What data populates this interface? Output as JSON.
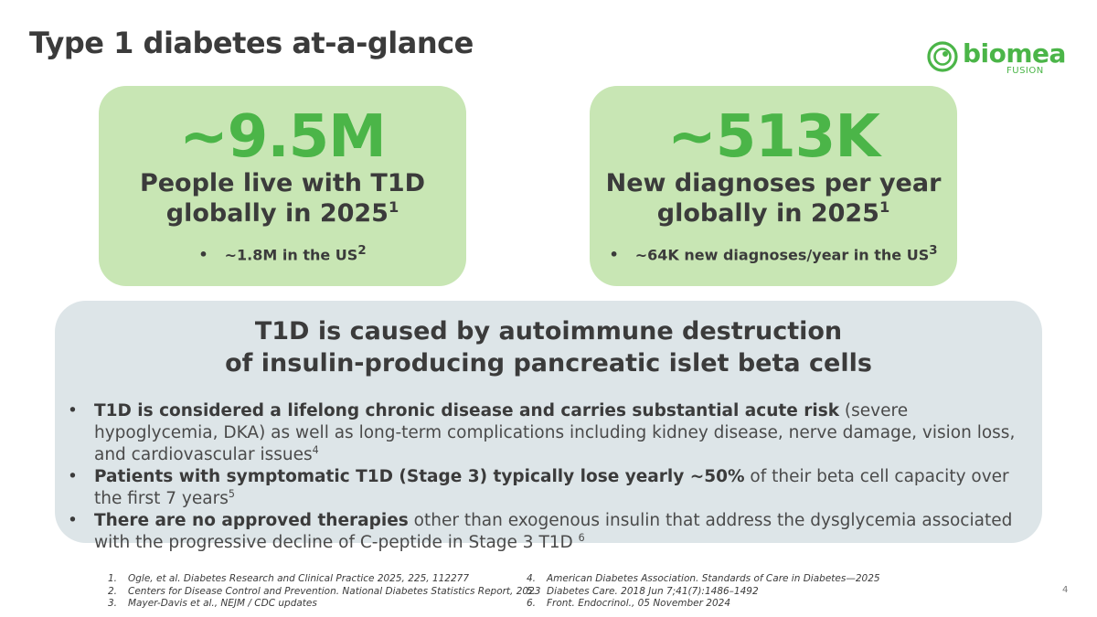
{
  "slide": {
    "title": "Type 1 diabetes at-a-glance",
    "page_number": "4"
  },
  "logo": {
    "word": "biomea",
    "sub": "FUSION",
    "brand_color": "#4bb548"
  },
  "stats": [
    {
      "value": "~9.5M",
      "label_line1": "People live with T1D",
      "label_line2": "globally in 2025",
      "label_sup": "1",
      "sub": "~1.8M in the US",
      "sub_sup": "2"
    },
    {
      "value": "~513K",
      "label_line1": "New diagnoses per year",
      "label_line2": "globally in 2025",
      "label_sup": "1",
      "sub": "~64K new diagnoses/year in the US",
      "sub_sup": "3"
    }
  ],
  "info": {
    "heading_line1": "T1D is caused by autoimmune destruction",
    "heading_line2": "of insulin-producing pancreatic islet beta cells",
    "bullets": [
      {
        "bold": "T1D is considered a lifelong chronic disease and carries substantial acute risk",
        "text": " (severe hypoglycemia, DKA) as well as long-term complications including kidney disease, nerve damage, vision loss, and cardiovascular issues",
        "sup": "4"
      },
      {
        "bold": "Patients with symptomatic T1D (Stage 3) typically lose yearly ~50%",
        "text": " of their beta cell capacity over the first 7 years",
        "sup": "5"
      },
      {
        "bold": "There are no approved therapies",
        "text": " other than exogenous insulin that address the dysglycemia associated with the progressive decline of C-peptide in Stage 3 T1D ",
        "sup": "6"
      }
    ]
  },
  "references": {
    "left": [
      {
        "num": "1.",
        "text": "Ogle, et al. Diabetes Research and Clinical Practice 2025, 225, 112277"
      },
      {
        "num": "2.",
        "text": "Centers for Disease Control and Prevention. National Diabetes Statistics Report, 2023"
      },
      {
        "num": "3.",
        "text": "Mayer-Davis et al., NEJM / CDC updates"
      }
    ],
    "right": [
      {
        "num": "4.",
        "text": "American Diabetes Association. Standards of Care in Diabetes—2025"
      },
      {
        "num": "5.",
        "text": "Diabetes Care. 2018 Jun 7;41(7):1486–1492"
      },
      {
        "num": "6.",
        "text": "Front. Endocrinol., 05 November 2024"
      }
    ]
  }
}
